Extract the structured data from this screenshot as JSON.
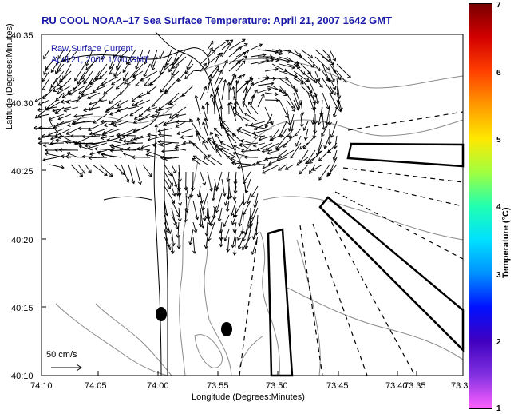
{
  "title": "RU COOL  NOAA–17  Sea Surface Temperature:  April 21, 2007 1642 GMT",
  "axes": {
    "xlabel": "Longitude (Degrees:Minutes)",
    "ylabel": "Latitude (Degrees:Minutes)",
    "xticks": [
      "74:10",
      "74:05",
      "74:00",
      "73:55",
      "73:50",
      "73:45",
      "73:40",
      "73:35",
      "73:3"
    ],
    "yticks": [
      "40:35",
      "40:30",
      "40:25",
      "40:20",
      "40:15",
      "40:10"
    ]
  },
  "legend": {
    "line1": "Raw Surface Current",
    "line2": "April 21, 2007 1700 GMT"
  },
  "scale_arrow": {
    "label": "50 cm/s",
    "speed_cm_s": 50
  },
  "colorbar": {
    "label": "Temperature (°C)",
    "ticks": [
      "7",
      "6",
      "5",
      "4",
      "3",
      "2",
      "1"
    ],
    "min": 1,
    "max": 7,
    "colors": [
      "#7a0000",
      "#d40000",
      "#ff4000",
      "#ff9900",
      "#ffe800",
      "#a0ff40",
      "#20ffb0",
      "#00e0ff",
      "#0090ff",
      "#0010ff",
      "#4000c0",
      "#8030e0",
      "#ff60ff"
    ]
  },
  "colors": {
    "title": "#1a1aa8",
    "coast": "#000000",
    "bathy": "#808080",
    "vectors": "#000000"
  }
}
